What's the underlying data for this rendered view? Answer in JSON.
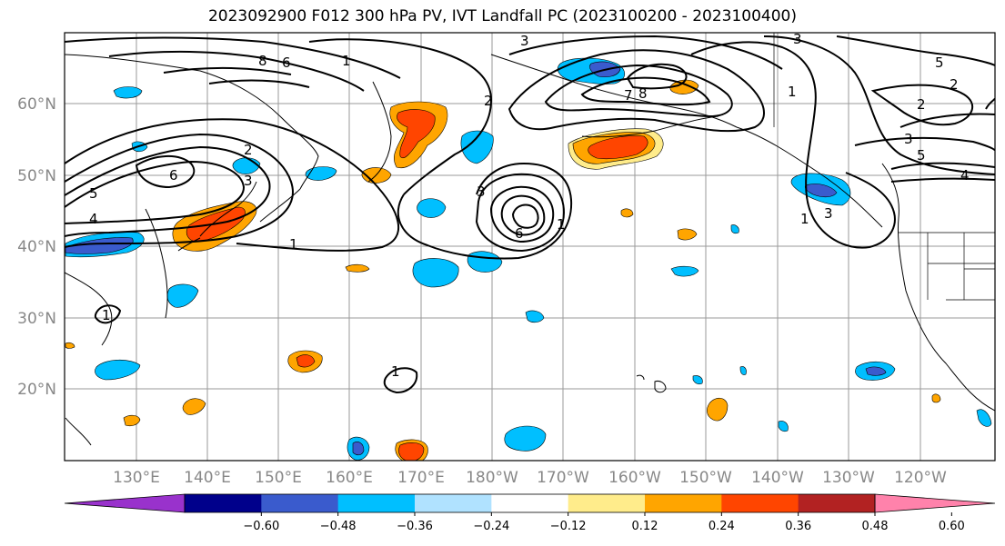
{
  "title": "2023092900 F012 300 hPa PV, IVT Landfall PC (2023100200 - 2023100400)",
  "lat_labels": [
    "60°N",
    "50°N",
    "40°N",
    "30°N",
    "20°N"
  ],
  "lon_labels": [
    "130°E",
    "140°E",
    "150°E",
    "160°E",
    "170°E",
    "180°W",
    "170°W",
    "160°W",
    "150°W",
    "140°W",
    "130°W",
    "120°W"
  ],
  "colorbar": {
    "colors": [
      "#9932CC",
      "#00008B",
      "#3A5BCD",
      "#00BFFF",
      "#B0E2FF",
      "#FFFFFF",
      "#FFEC8B",
      "#FFA500",
      "#FF4500",
      "#B22222",
      "#FF82AB"
    ],
    "ticks": [
      "−0.60",
      "−0.48",
      "−0.36",
      "−0.24",
      "−0.12",
      "0.12",
      "0.24",
      "0.36",
      "0.48",
      "0.60"
    ]
  },
  "contour_labels": [
    "3",
    "2",
    "8",
    "6",
    "1",
    "2",
    "6",
    "3",
    "5",
    "7",
    "8",
    "1",
    "2",
    "3",
    "5",
    "4",
    "6",
    "4",
    "1",
    "3",
    "3",
    "1",
    "1",
    "1",
    "2",
    "3",
    "5",
    "1"
  ]
}
